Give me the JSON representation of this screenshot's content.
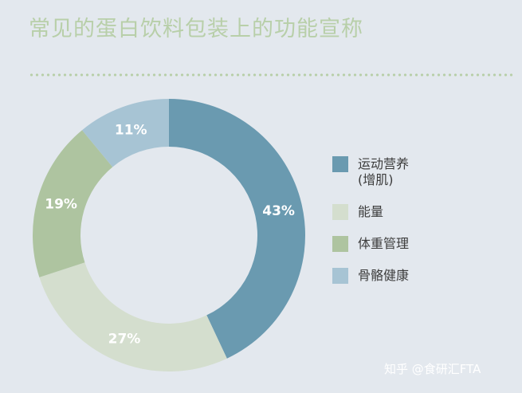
{
  "title": "常见的蛋白饮料包装上的功能宣称",
  "watermark": "知乎 @食研汇FTA",
  "chart_data": {
    "type": "pie",
    "donut": true,
    "start_angle_deg": 0,
    "direction": "clockwise",
    "slices": [
      {
        "label": "运动营养(增肌)",
        "label_lines": [
          "运动营养",
          "(增肌)"
        ],
        "value": 43,
        "value_label": "43%",
        "color": "#6a9ab0"
      },
      {
        "label": "能量",
        "label_lines": [
          "能量"
        ],
        "value": 27,
        "value_label": "27%",
        "color": "#d4dece"
      },
      {
        "label": "体重管理",
        "label_lines": [
          "体重管理"
        ],
        "value": 19,
        "value_label": "19%",
        "color": "#aec4a0"
      },
      {
        "label": "骨骼健康",
        "label_lines": [
          "骨骼健康"
        ],
        "value": 11,
        "value_label": "11%",
        "color": "#a7c4d4"
      }
    ],
    "legend_position": "right"
  }
}
